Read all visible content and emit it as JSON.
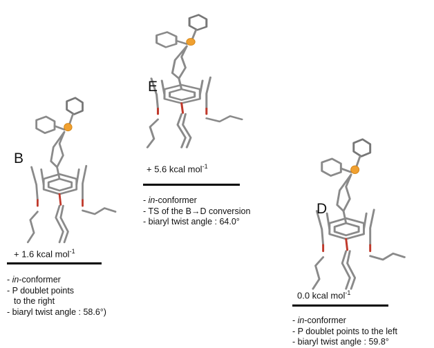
{
  "conformers": [
    {
      "label": "B",
      "energy": "+ 1.6 kcal mol",
      "energy_unit_exp": "-1",
      "lines": [
        [
          "- ",
          "in",
          "-conformer"
        ],
        "- P doublet points",
        "to the right",
        "- biaryl twist angle : 58.6°)"
      ]
    },
    {
      "label": "E",
      "energy": "+ 5.6 kcal mol",
      "energy_unit_exp": "-1",
      "lines": [
        [
          "- ",
          "in",
          "-conformer"
        ],
        "- TS of the B→D conversion",
        "- biaryl twist angle : 64.0°"
      ]
    },
    {
      "label": "D",
      "energy": "0.0 kcal mol",
      "energy_unit_exp": "-1",
      "lines": [
        [
          "- ",
          "in",
          "-conformer"
        ],
        "- P doublet points to the left",
        "- biaryl twist angle : 59.8°"
      ]
    }
  ]
}
